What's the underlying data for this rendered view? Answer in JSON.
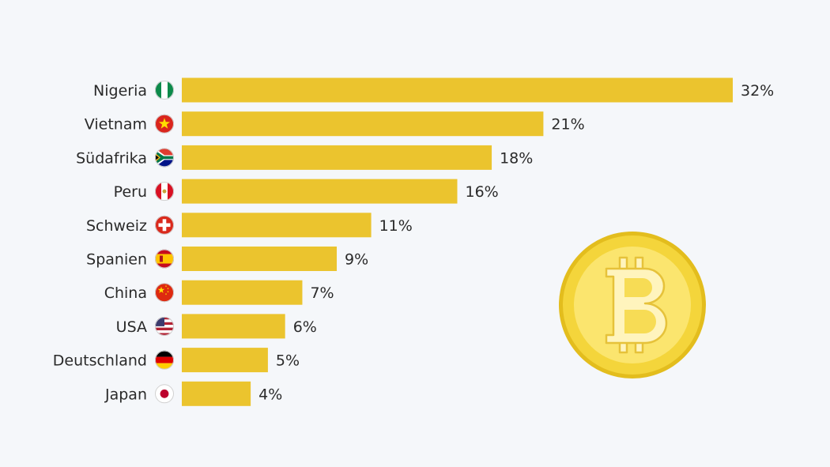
{
  "chart_data": {
    "type": "bar",
    "orientation": "horizontal",
    "categories": [
      "Nigeria",
      "Vietnam",
      "Südafrika",
      "Peru",
      "Schweiz",
      "Spanien",
      "China",
      "USA",
      "Deutschland",
      "Japan"
    ],
    "values": [
      32,
      21,
      18,
      16,
      11,
      9,
      7,
      6,
      5,
      4
    ],
    "value_labels": [
      "32%",
      "21%",
      "18%",
      "16%",
      "11%",
      "9%",
      "7%",
      "6%",
      "5%",
      "4%"
    ],
    "flags": [
      "nigeria-flag-icon",
      "vietnam-flag-icon",
      "south-africa-flag-icon",
      "peru-flag-icon",
      "switzerland-flag-icon",
      "spain-flag-icon",
      "china-flag-icon",
      "usa-flag-icon",
      "germany-flag-icon",
      "japan-flag-icon"
    ],
    "xlim": [
      0,
      32
    ],
    "grid": false,
    "bar_color": "#ebc42e",
    "decoration": "bitcoin-coin-icon"
  },
  "colors": {
    "background": "#f5f7fa",
    "bar": "#ebc42e",
    "text": "#2a2a2a",
    "coin": "#f4d53b",
    "coin_light": "#fbe56e",
    "coin_dark": "#e3bd1d"
  }
}
